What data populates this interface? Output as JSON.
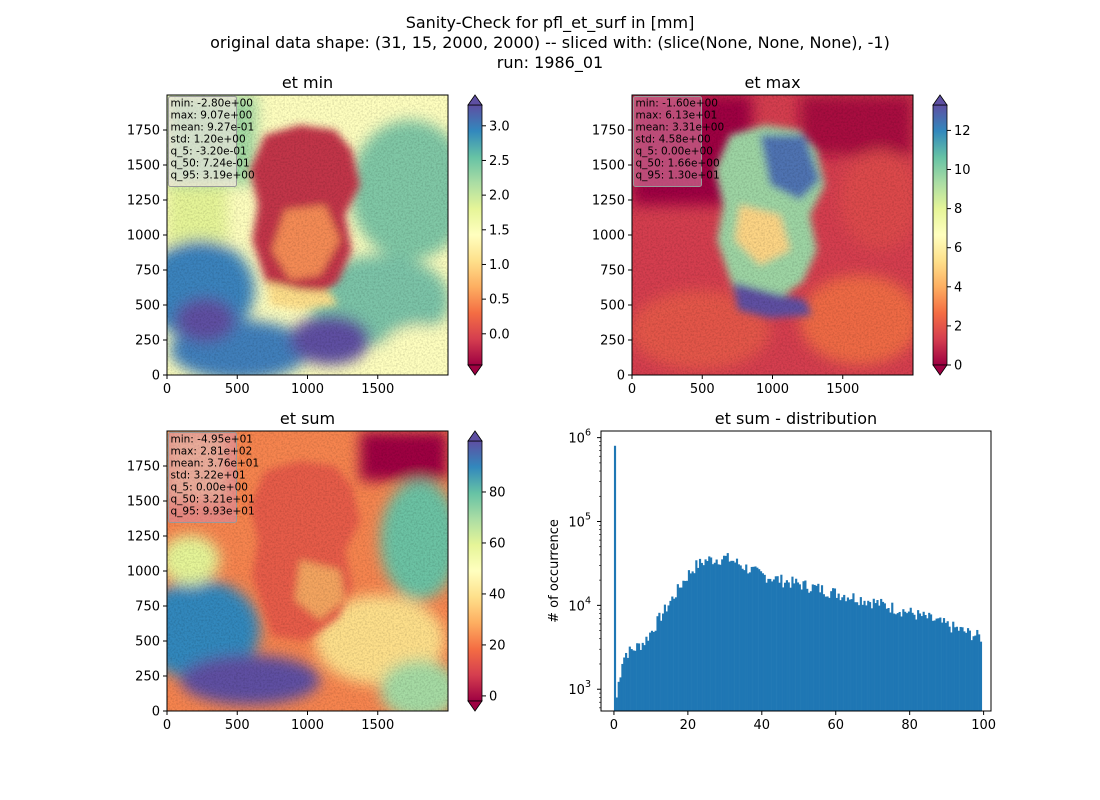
{
  "suptitle": {
    "line1": "Sanity-Check for pfl_et_surf in [mm]",
    "line2": "original data shape: (31, 15, 2000, 2000) -- sliced with: (slice(None, None, None), -1)",
    "line3": "run: 1986_01"
  },
  "colors": {
    "spectral": [
      "#9e0142",
      "#d53e4f",
      "#f46d43",
      "#fdae61",
      "#fee08b",
      "#ffffbf",
      "#e6f598",
      "#abdda4",
      "#66c2a5",
      "#3288bd",
      "#5e4fa2"
    ],
    "hist_bar": "#1f77b4",
    "statbox_fill": "#f7c6d0",
    "statbox_alt": "#d889a6"
  },
  "chart_data": [
    {
      "type": "heatmap",
      "title": "et min",
      "x_ticks": [
        0,
        500,
        1000,
        1500
      ],
      "y_ticks": [
        0,
        250,
        500,
        750,
        1000,
        1250,
        1500,
        1750
      ],
      "xlim": [
        0,
        2000
      ],
      "ylim": [
        0,
        2000
      ],
      "colorbar": {
        "min": -0.45,
        "max": 3.3,
        "ticks": [
          "0.0",
          "0.5",
          "1.0",
          "1.5",
          "2.0",
          "2.5",
          "3.0"
        ],
        "tick_values": [
          0,
          0.5,
          1.0,
          1.5,
          2.0,
          2.5,
          3.0
        ],
        "extend": "both"
      },
      "stats": [
        "min: -2.80e+00",
        "max: 9.07e+00",
        "mean: 9.27e-01",
        "std: 1.20e+00",
        "q_5: -3.20e-01",
        "q_50: 7.24e-01",
        "q_95: 3.19e+00"
      ],
      "statbox_style": "pale"
    },
    {
      "type": "heatmap",
      "title": "et max",
      "x_ticks": [
        0,
        500,
        1000,
        1500
      ],
      "y_ticks": [
        0,
        250,
        500,
        750,
        1000,
        1250,
        1500,
        1750
      ],
      "xlim": [
        0,
        2000
      ],
      "ylim": [
        0,
        2000
      ],
      "colorbar": {
        "min": 0,
        "max": 13.3,
        "ticks": [
          "0",
          "2",
          "4",
          "6",
          "8",
          "10",
          "12"
        ],
        "tick_values": [
          0,
          2,
          4,
          6,
          8,
          10,
          12
        ],
        "extend": "both"
      },
      "stats": [
        "min: -1.60e+00",
        "max: 6.13e+01",
        "mean: 3.31e+00",
        "std: 4.58e+00",
        "q_5: 0.00e+00",
        "q_50: 1.66e+00",
        "q_95: 1.30e+01"
      ],
      "statbox_style": "pink"
    },
    {
      "type": "heatmap",
      "title": "et sum",
      "x_ticks": [
        0,
        500,
        1000,
        1500
      ],
      "y_ticks": [
        0,
        250,
        500,
        750,
        1000,
        1250,
        1500,
        1750
      ],
      "xlim": [
        0,
        2000
      ],
      "ylim": [
        0,
        2000
      ],
      "colorbar": {
        "min": -2,
        "max": 100,
        "ticks": [
          "0",
          "20",
          "40",
          "60",
          "80"
        ],
        "tick_values": [
          0,
          20,
          40,
          60,
          80
        ],
        "extend": "both"
      },
      "stats": [
        "min: -4.95e+01",
        "max: 2.81e+02",
        "mean: 3.76e+01",
        "std: 3.22e+01",
        "q_5: 0.00e+00",
        "q_50: 3.21e+01",
        "q_95: 9.93e+01"
      ],
      "statbox_style": "pink"
    },
    {
      "type": "bar",
      "title": "et sum - distribution",
      "ylabel": "# of occurrence",
      "yscale": "log",
      "xlim": [
        -3.5,
        102
      ],
      "ylim": [
        550,
        1200000
      ],
      "x_ticks": [
        0,
        20,
        40,
        60,
        80,
        100
      ],
      "y_ticks": [
        {
          "value": 1000,
          "label": "10^3"
        },
        {
          "value": 10000,
          "label": "10^4"
        },
        {
          "value": 100000,
          "label": "10^5"
        },
        {
          "value": 1000000,
          "label": "10^6"
        }
      ],
      "bin_width": 0.5,
      "keypoints": [
        [
          0,
          800000
        ],
        [
          0.5,
          800
        ],
        [
          1,
          1200
        ],
        [
          1.5,
          1600
        ],
        [
          2,
          2200
        ],
        [
          3,
          2700
        ],
        [
          5,
          3000
        ],
        [
          8,
          3700
        ],
        [
          10,
          5000
        ],
        [
          12,
          7000
        ],
        [
          14,
          9500
        ],
        [
          16,
          13000
        ],
        [
          18,
          18000
        ],
        [
          20,
          24000
        ],
        [
          22,
          30000
        ],
        [
          25,
          35000
        ],
        [
          28,
          36000
        ],
        [
          30,
          37000
        ],
        [
          32,
          34000
        ],
        [
          35,
          29000
        ],
        [
          38,
          25000
        ],
        [
          40,
          23000
        ],
        [
          45,
          20000
        ],
        [
          50,
          18000
        ],
        [
          55,
          16000
        ],
        [
          60,
          14000
        ],
        [
          65,
          12500
        ],
        [
          70,
          11000
        ],
        [
          75,
          9500
        ],
        [
          80,
          8200
        ],
        [
          85,
          7000
        ],
        [
          90,
          5800
        ],
        [
          95,
          4800
        ],
        [
          99,
          4200
        ]
      ]
    }
  ]
}
